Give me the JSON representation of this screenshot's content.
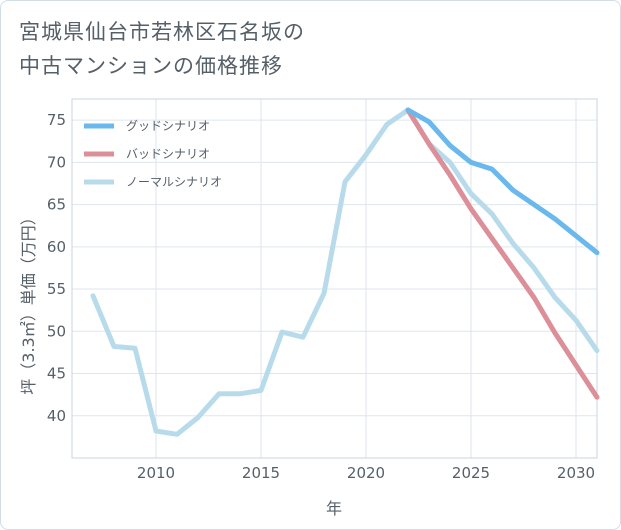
{
  "title_lines": [
    "宮城県仙台市若林区石名坂の",
    "中古マンションの価格推移"
  ],
  "chart_data": {
    "type": "line",
    "title": "宮城県仙台市若林区石名坂の中古マンションの価格推移",
    "xlabel": "年",
    "ylabel": "坪（3.3㎡）単価（万円）",
    "xlim": [
      2006,
      2031
    ],
    "ylim": [
      35,
      77.5
    ],
    "xticks": [
      2010,
      2015,
      2020,
      2025,
      2030
    ],
    "yticks": [
      40,
      45,
      50,
      55,
      60,
      65,
      70,
      75
    ],
    "grid": true,
    "legend_position": "top-left",
    "series": [
      {
        "name": "グッドシナリオ",
        "color": "#6ab8ec",
        "x": [
          2022,
          2023,
          2024,
          2025,
          2026,
          2027,
          2028,
          2029,
          2030,
          2031
        ],
        "y": [
          76.2,
          74.8,
          72.0,
          70.0,
          69.2,
          66.7,
          65.0,
          63.3,
          61.3,
          59.3
        ]
      },
      {
        "name": "バッドシナリオ",
        "color": "#dc8f98",
        "x": [
          2022,
          2023,
          2024,
          2025,
          2026,
          2027,
          2028,
          2029,
          2030,
          2031
        ],
        "y": [
          76.2,
          72.2,
          68.5,
          64.5,
          61.0,
          57.5,
          54.0,
          49.8,
          46.0,
          42.2
        ]
      },
      {
        "name": "ノーマルシナリオ",
        "color": "#b8dbeb",
        "x": [
          2007,
          2008,
          2009,
          2010,
          2011,
          2012,
          2013,
          2014,
          2015,
          2016,
          2017,
          2018,
          2019,
          2020,
          2021,
          2022,
          2023,
          2024,
          2025,
          2026,
          2027,
          2028,
          2029,
          2030,
          2031
        ],
        "y": [
          54.2,
          48.2,
          48.0,
          38.2,
          37.8,
          39.8,
          42.6,
          42.6,
          43.0,
          49.9,
          49.3,
          54.5,
          67.7,
          70.9,
          74.5,
          76.2,
          72.2,
          70.0,
          66.3,
          63.9,
          60.4,
          57.5,
          54.0,
          51.3,
          47.7
        ]
      }
    ]
  }
}
